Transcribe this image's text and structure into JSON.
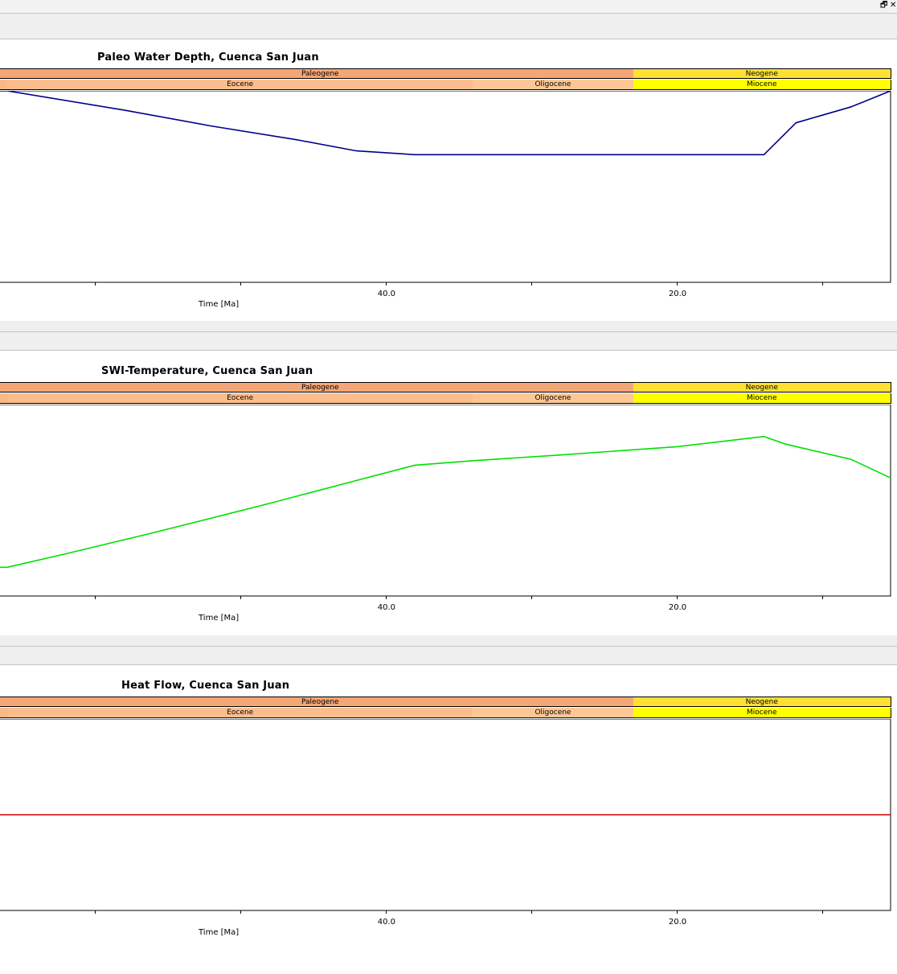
{
  "window": {
    "controls": {
      "restore": "🗗",
      "close": "✕"
    }
  },
  "stratigraphy": {
    "periods": [
      {
        "name": "",
        "color": "#F5A676",
        "x_start": 66.8,
        "x_end": 66.0
      },
      {
        "name": "Paleogene",
        "color": "#F5A676",
        "x_start": 66.0,
        "x_end": 23.0
      },
      {
        "name": "Neogene",
        "color": "#FFE033",
        "x_start": 23.0,
        "x_end": 5.3
      }
    ],
    "epochs": [
      {
        "name": "",
        "color": "#F9B888",
        "x_start": 66.8,
        "x_end": 66.0
      },
      {
        "name": "Eocene",
        "color": "#FBBD8D",
        "x_start": 66.0,
        "x_end": 34.0
      },
      {
        "name": "Oligocene",
        "color": "#FDC795",
        "x_start": 34.0,
        "x_end": 23.0
      },
      {
        "name": "Miocene",
        "color": "#FFFF00",
        "x_start": 23.0,
        "x_end": 5.3
      }
    ]
  },
  "chart_data": [
    {
      "type": "line",
      "title": "Paleo Water Depth, Cuenca San Juan",
      "xlabel": "Time [Ma]",
      "xlim": [
        66.5,
        5.3
      ],
      "xticks": [
        60,
        50,
        40,
        30,
        20,
        10
      ],
      "xtick_labels": [
        "",
        "",
        "40.0",
        "",
        "20.0",
        ""
      ],
      "ylim": [
        0,
        300
      ],
      "series": [
        {
          "color": "#00008B",
          "x": [
            66.5,
            66.0,
            58.0,
            52.0,
            46.0,
            42.0,
            38.0,
            14.0,
            11.8,
            8.0,
            5.3
          ],
          "y": [
            0,
            0,
            30,
            55,
            77,
            94,
            100,
            100,
            50,
            25,
            0
          ]
        }
      ]
    },
    {
      "type": "line",
      "title": "SWI-Temperature, Cuenca San Juan",
      "xlabel": "Time [Ma]",
      "xlim": [
        66.5,
        5.3
      ],
      "xticks": [
        60,
        50,
        40,
        30,
        20,
        10
      ],
      "xtick_labels": [
        "",
        "",
        "40.0",
        "",
        "20.0",
        ""
      ],
      "ylim": [
        0,
        30
      ],
      "series": [
        {
          "color": "#00E000",
          "x": [
            66.5,
            66.0,
            62.0,
            56.0,
            48.0,
            42.0,
            38.0,
            34.0,
            28.0,
            20.0,
            14.0,
            12.5,
            8.0,
            5.3
          ],
          "y": [
            25.5,
            25.5,
            23.4,
            20.1,
            15.5,
            11.9,
            9.5,
            8.8,
            7.9,
            6.6,
            5.0,
            6.2,
            8.6,
            11.5
          ]
        }
      ]
    },
    {
      "type": "line",
      "title": "Heat Flow, Cuenca San Juan",
      "xlabel": "Time [Ma]",
      "xlim": [
        66.5,
        5.3
      ],
      "xticks": [
        60,
        50,
        40,
        30,
        20,
        10
      ],
      "xtick_labels": [
        "",
        "",
        "40.0",
        "",
        "20.0",
        ""
      ],
      "ylim": [
        0,
        100
      ],
      "series": [
        {
          "color": "#CC0000",
          "x": [
            66.5,
            5.3
          ],
          "y": [
            50,
            50
          ]
        }
      ]
    }
  ]
}
